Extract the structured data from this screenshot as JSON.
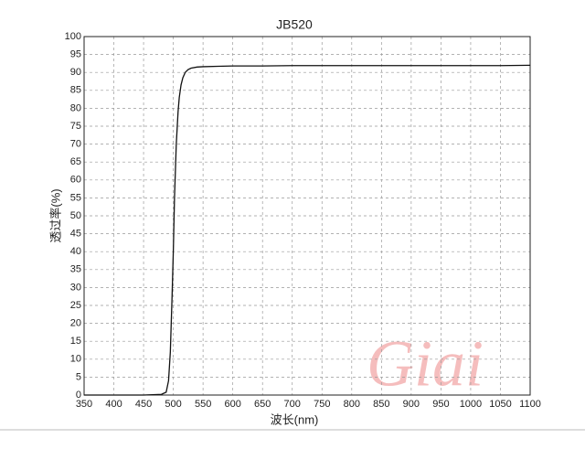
{
  "chart_data": {
    "type": "line",
    "title": "JB520",
    "x_label": "波长(nm)",
    "y_label": "透过率(%)",
    "watermark": "Giai",
    "series": [
      {
        "name": "JB520",
        "color": "#111111",
        "x": [
          350,
          400,
          450,
          480,
          488,
          492,
          495,
          498,
          500,
          502,
          505,
          508,
          510,
          513,
          516,
          520,
          525,
          530,
          540,
          550,
          575,
          600,
          650,
          700,
          750,
          800,
          850,
          900,
          950,
          1000,
          1050,
          1100
        ],
        "values": [
          0,
          0,
          0,
          0.2,
          0.8,
          4,
          12,
          28,
          40,
          55,
          70,
          79,
          83,
          86.5,
          88.5,
          90,
          90.8,
          91.2,
          91.5,
          91.6,
          91.7,
          91.8,
          91.8,
          91.9,
          91.9,
          91.9,
          91.9,
          91.9,
          91.9,
          91.9,
          91.9,
          92
        ]
      }
    ],
    "xlim": [
      350,
      1100
    ],
    "xticks": [
      350,
      400,
      450,
      500,
      550,
      600,
      650,
      700,
      750,
      800,
      850,
      900,
      950,
      1000,
      1050,
      1100
    ],
    "ylim": [
      0,
      100
    ],
    "yticks": [
      0,
      5,
      10,
      15,
      20,
      25,
      30,
      35,
      40,
      45,
      50,
      55,
      60,
      65,
      70,
      75,
      80,
      85,
      90,
      95,
      100
    ],
    "grid": true
  }
}
